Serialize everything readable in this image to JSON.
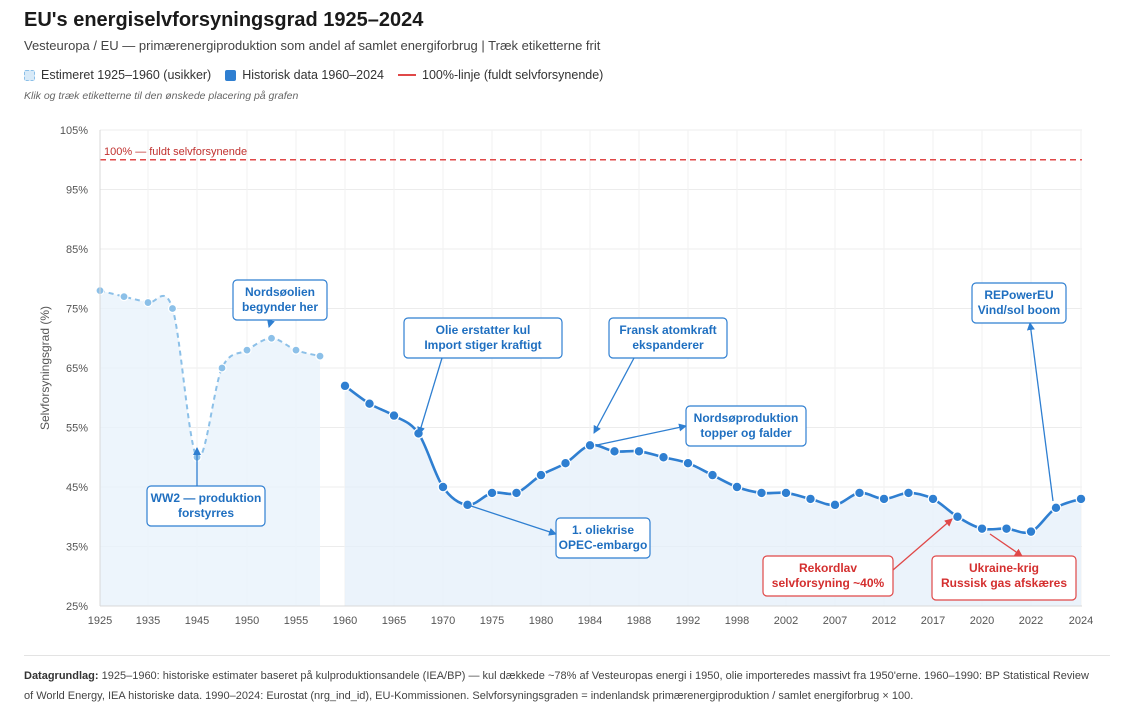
{
  "header": {
    "title": "EU's energiselvforsyningsgrad 1925–2024",
    "subtitle": "Vesteuropa / EU — primærenergiproduktion som andel af samlet energiforbrug | Træk etiketterne frit",
    "hint": "Klik og træk etiketterne til den ønskede placering på grafen"
  },
  "legend": {
    "estimated": "Estimeret 1925–1960 (usikker)",
    "historical": "Historisk data 1960–2024",
    "reference": "100%-linje (fuldt selvforsynende)"
  },
  "colors": {
    "historical": "#2f7fd1",
    "estimated": "#8cc0e8",
    "reference": "#e04848",
    "annotation_red": "#e04848"
  },
  "chart_data": {
    "type": "line",
    "title": "EU's energiselvforsyningsgrad 1925–2024",
    "ylabel": "Selvforsyningsgrad (%)",
    "xlabel": "",
    "ylim": [
      25,
      105
    ],
    "yticks": [
      25,
      35,
      45,
      55,
      65,
      75,
      85,
      95,
      105
    ],
    "ytick_labels": [
      "25%",
      "35%",
      "45%",
      "55%",
      "65%",
      "75%",
      "85%",
      "95%",
      "105%"
    ],
    "xtick_labels": [
      "1925",
      "1935",
      "1945",
      "1950",
      "1955",
      "1960",
      "1965",
      "1970",
      "1975",
      "1980",
      "1984",
      "1988",
      "1992",
      "1998",
      "2002",
      "2007",
      "2012",
      "2017",
      "2020",
      "2022",
      "2024"
    ],
    "reference_line": {
      "value": 100,
      "label": "100% — fuldt selvforsynende"
    },
    "series": [
      {
        "name": "Estimeret 1925–1960 (usikker)",
        "style": "dashed",
        "x": [
          1925,
          1930,
          1935,
          1940,
          1945,
          1947.5,
          1950,
          1952.5,
          1955,
          1957.5
        ],
        "values": [
          78,
          77,
          76,
          75,
          50,
          65,
          68,
          70,
          68,
          67
        ]
      },
      {
        "name": "Historisk data 1960–2024",
        "style": "solid",
        "x": [
          1960,
          1962.5,
          1965,
          1967.5,
          1970,
          1972.5,
          1975,
          1977.5,
          1980,
          1982,
          1984,
          1986,
          1988,
          1990,
          1992,
          1995,
          1998,
          2000,
          2002,
          2004.5,
          2007,
          2009.5,
          2012,
          2014.5,
          2017,
          2018.5,
          2020,
          2021,
          2022,
          2023,
          2024
        ],
        "values": [
          62,
          59,
          57,
          54,
          45,
          42,
          44,
          44,
          47,
          49,
          52,
          51,
          51,
          50,
          49,
          47,
          45,
          44,
          44,
          43,
          42,
          44,
          43,
          44,
          43,
          40,
          38,
          38,
          37.5,
          41.5,
          43
        ]
      }
    ],
    "annotations": [
      {
        "lines": [
          "Nordsøolien",
          "begynder her"
        ],
        "color": "blue"
      },
      {
        "lines": [
          "WW2 — produktion",
          "forstyrres"
        ],
        "color": "blue"
      },
      {
        "lines": [
          "Olie erstatter kul",
          "Import stiger kraftigt"
        ],
        "color": "blue"
      },
      {
        "lines": [
          "Fransk atomkraft",
          "ekspanderer"
        ],
        "color": "blue"
      },
      {
        "lines": [
          "Nordsøproduktion",
          "topper og falder"
        ],
        "color": "blue"
      },
      {
        "lines": [
          "1. oliekrise",
          "OPEC-embargo"
        ],
        "color": "blue"
      },
      {
        "lines": [
          "REPowerEU",
          "Vind/sol boom"
        ],
        "color": "blue"
      },
      {
        "lines": [
          "Rekordlav",
          "selvforsyning ~40%"
        ],
        "color": "red"
      },
      {
        "lines": [
          "Ukraine-krig",
          "Russisk gas afskæres"
        ],
        "color": "red"
      }
    ]
  },
  "footer": {
    "label": "Datagrundlag:",
    "text": " 1925–1960: historiske estimater baseret på kulproduktionsandele (IEA/BP) — kul dækkede ~78% af Vesteuropas energi i 1950, olie importeredes massivt fra 1950'erne. 1960–1990: BP Statistical Review of World Energy, IEA historiske data. 1990–2024: Eurostat (nrg_ind_id), EU-Kommissionen. Selvforsyningsgraden = indenlandsk primærenergiproduktion / samlet energiforbrug × 100."
  }
}
